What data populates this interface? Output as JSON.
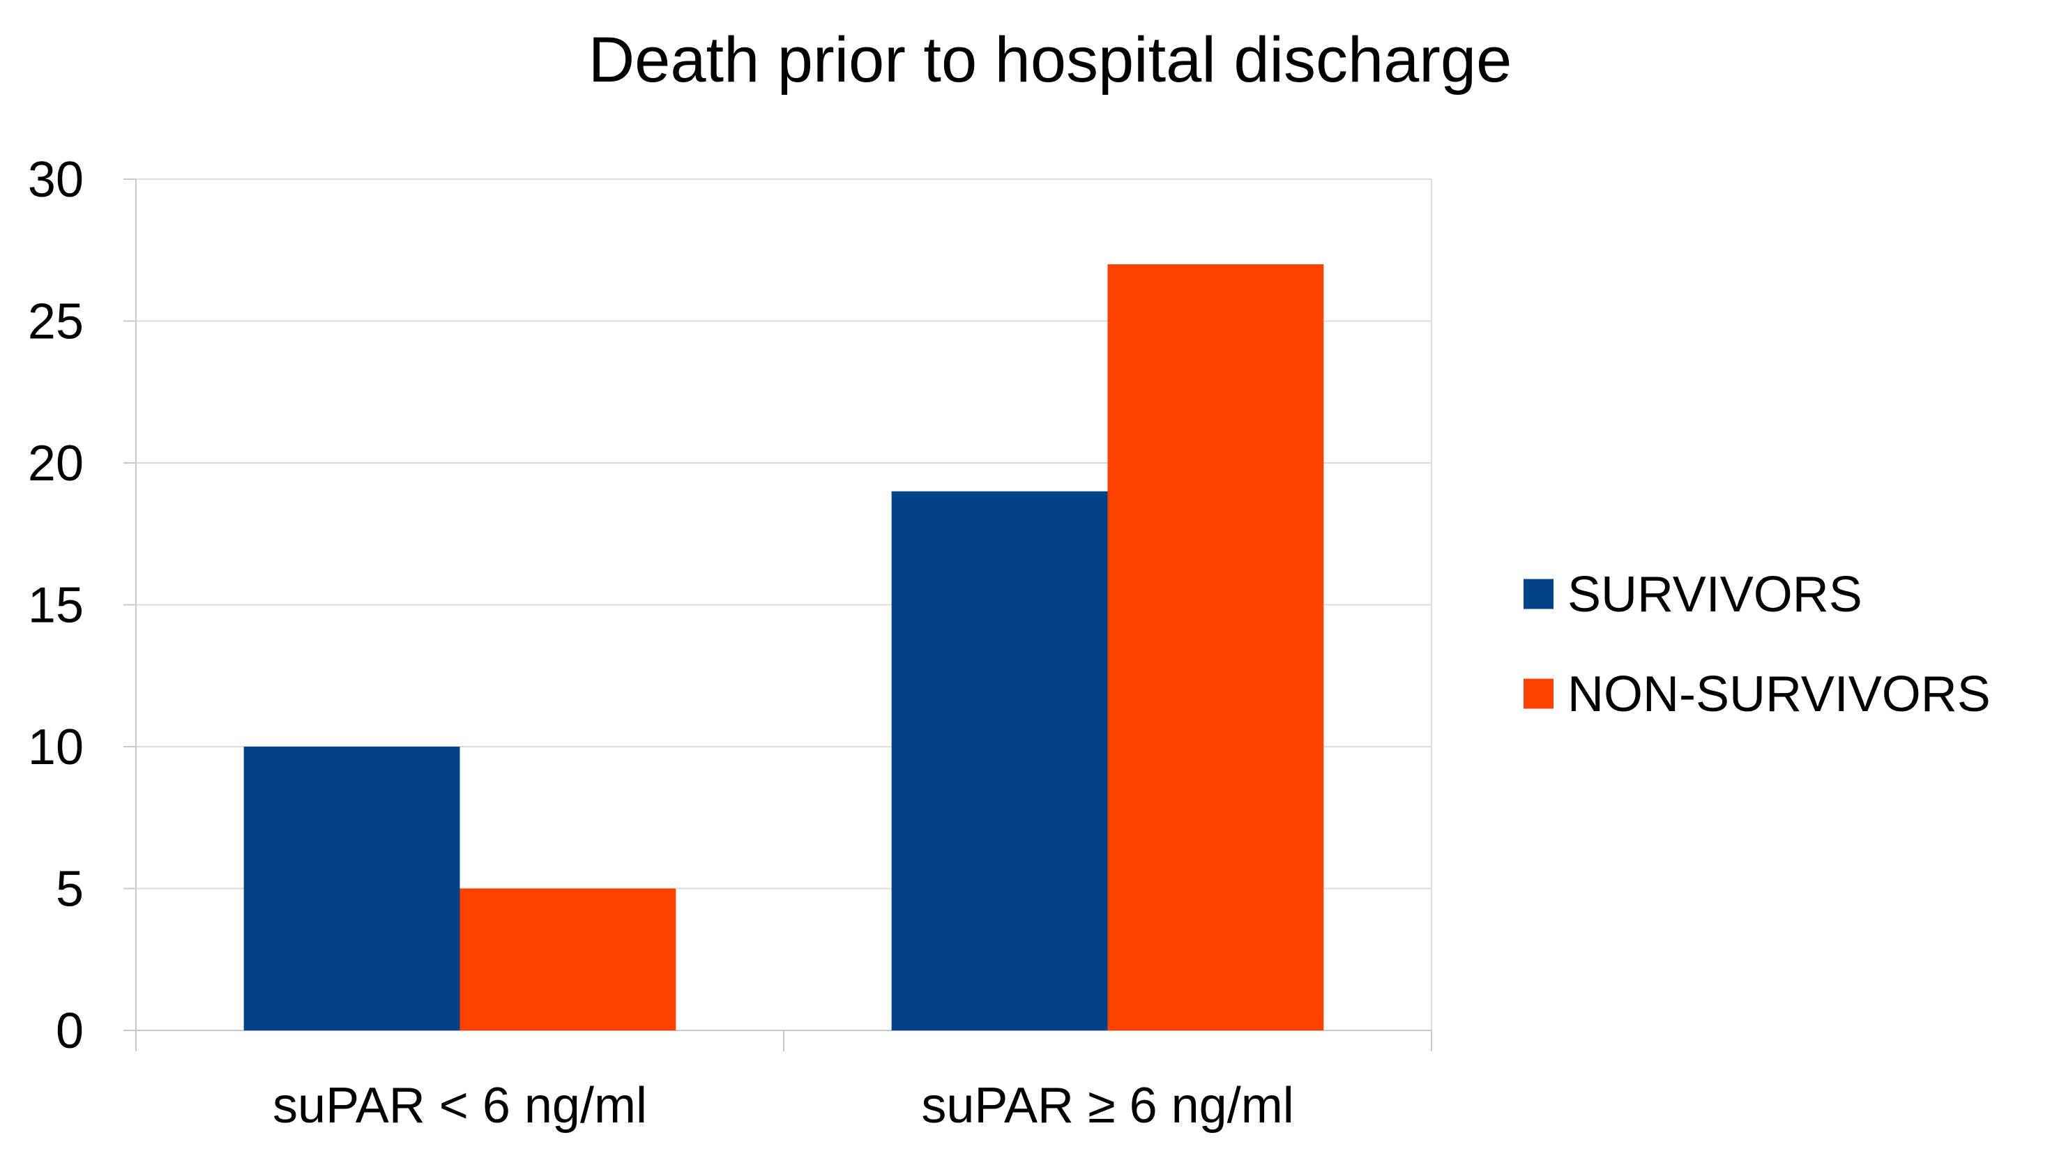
{
  "chart_data": {
    "type": "bar",
    "title": "Death prior to hospital discharge",
    "xlabel": "",
    "ylabel": "",
    "categories": [
      "suPAR < 6 ng/ml",
      "suPAR ≥ 6 ng/ml"
    ],
    "series": [
      {
        "name": "SURVIVORS",
        "values": [
          10,
          19
        ],
        "color": "#024287"
      },
      {
        "name": "NON-SURVIVORS",
        "values": [
          5,
          27
        ],
        "color": "#FF4200"
      }
    ],
    "ylim": [
      0,
      30
    ],
    "yticks": [
      0,
      5,
      10,
      15,
      20,
      25,
      30
    ],
    "grid": true,
    "legend_position": "right"
  }
}
